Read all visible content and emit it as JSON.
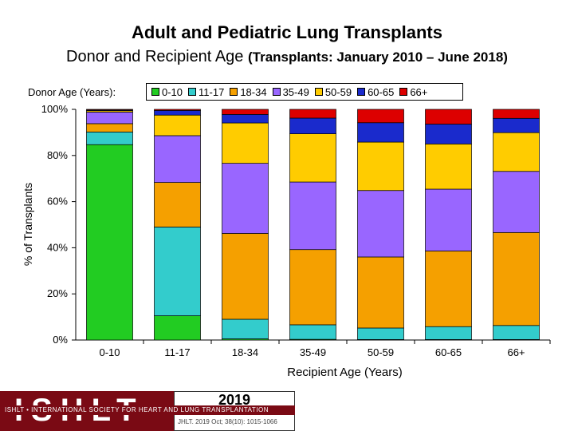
{
  "title": "Adult and Pediatric Lung Transplants",
  "subtitle_main": "Donor and Recipient Age",
  "subtitle_period": "(Transplants: January 2010 – June 2018)",
  "footer": {
    "logo": "ISHLT",
    "org": "ISHLT • INTERNATIONAL SOCIETY FOR HEART AND LUNG TRANSPLANTATION",
    "year": "2019",
    "citation": "JHLT. 2019 Oct; 38(10): 1015-1066"
  },
  "chart_data": {
    "type": "bar",
    "stacked": true,
    "percent": true,
    "title": "Adult and Pediatric Lung Transplants",
    "xlabel": "Recipient Age (Years)",
    "ylabel": "% of Transplants",
    "legend_title": "Donor Age (Years):",
    "legend_position": "top",
    "ylim": [
      0,
      100
    ],
    "yticks": [
      "0%",
      "20%",
      "40%",
      "60%",
      "80%",
      "100%"
    ],
    "grid": false,
    "categories": [
      "0-10",
      "11-17",
      "18-34",
      "35-49",
      "50-59",
      "60-65",
      "66+"
    ],
    "series": [
      {
        "name": "0-10",
        "color": "#22cc22",
        "values": [
          84.7,
          10.5,
          0.5,
          0.3,
          0.2,
          0.2,
          0.2
        ]
      },
      {
        "name": "11-17",
        "color": "#33cccc",
        "values": [
          5.5,
          38.5,
          8.5,
          6.3,
          5.0,
          5.6,
          6.1
        ]
      },
      {
        "name": "18-34",
        "color": "#f5a000",
        "values": [
          3.6,
          19.3,
          37.2,
          32.6,
          30.8,
          32.8,
          40.3
        ]
      },
      {
        "name": "35-49",
        "color": "#9966ff",
        "values": [
          5.0,
          20.3,
          30.4,
          29.3,
          28.8,
          26.8,
          26.5
        ]
      },
      {
        "name": "50-59",
        "color": "#ffcc00",
        "values": [
          0.6,
          8.9,
          17.5,
          20.9,
          21.0,
          19.6,
          16.8
        ]
      },
      {
        "name": "60-65",
        "color": "#1a2acc",
        "values": [
          0.3,
          2.0,
          3.7,
          6.8,
          8.4,
          8.6,
          6.2
        ]
      },
      {
        "name": "66+",
        "color": "#dd0000",
        "values": [
          0.3,
          0.5,
          2.2,
          3.8,
          5.8,
          6.4,
          3.9
        ]
      }
    ]
  }
}
